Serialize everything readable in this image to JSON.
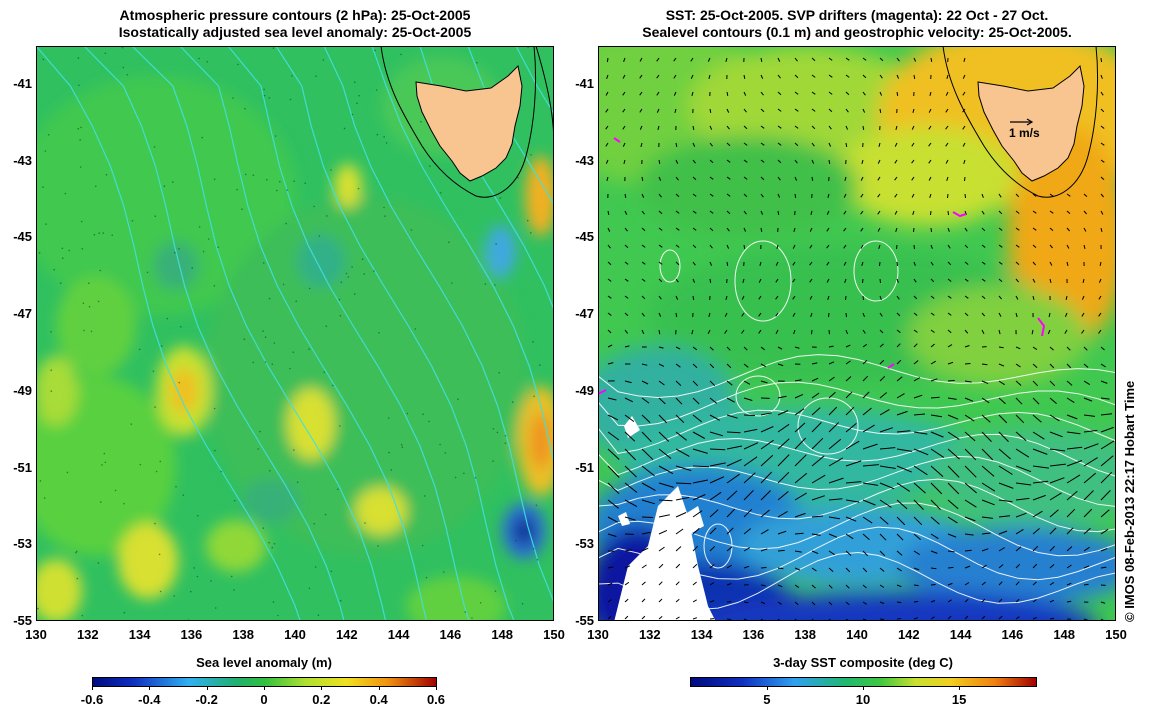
{
  "left_panel": {
    "title_line1": "Atmospheric pressure contours (2 hPa): 25-Oct-2005",
    "title_line2": "Isostatically adjusted sea level anomaly: 25-Oct-2005",
    "x_ticks": [
      "130",
      "132",
      "134",
      "136",
      "138",
      "140",
      "142",
      "144",
      "146",
      "148",
      "150"
    ],
    "y_ticks": [
      "-41",
      "-43",
      "-45",
      "-47",
      "-49",
      "-51",
      "-53",
      "-55"
    ],
    "colorbar": {
      "label": "Sea level anomaly (m)",
      "ticks": [
        "-0.6",
        "-0.4",
        "-0.2",
        "0",
        "0.2",
        "0.4",
        "0.6"
      ],
      "min": -0.6,
      "max": 0.6
    }
  },
  "right_panel": {
    "title_line1": "SST: 25-Oct-2005. SVP drifters (magenta): 22 Oct - 27 Oct.",
    "title_line2": "Sealevel contours (0.1 m) and geostrophic velocity: 25-Oct-2005.",
    "x_ticks": [
      "130",
      "132",
      "134",
      "136",
      "138",
      "140",
      "142",
      "144",
      "146",
      "148",
      "150"
    ],
    "y_ticks": [
      "-41",
      "-43",
      "-45",
      "-47",
      "-49",
      "-51",
      "-53",
      "-55"
    ],
    "vector_scale_label": "1 m/s",
    "colorbar": {
      "label": "3-day SST composite (deg C)",
      "ticks": [
        "5",
        "10",
        "15"
      ],
      "min": 1,
      "max": 19
    }
  },
  "credit": "© IMOS 08-Feb-2013 22:17 Hobart Time",
  "colors": {
    "land": "#f8c490",
    "pressure_contours": "#40e0e0",
    "drifters": "#ff00ff"
  }
}
